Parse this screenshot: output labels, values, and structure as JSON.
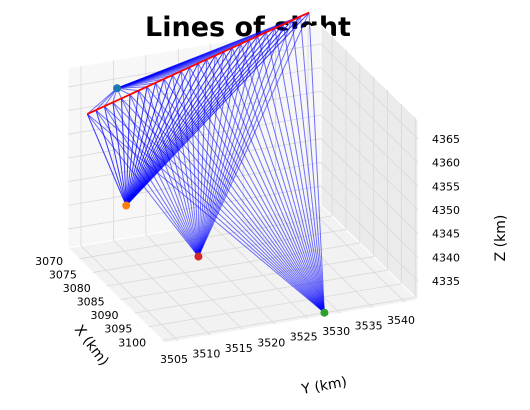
{
  "chart_data": {
    "type": "3d-line",
    "title": "Lines of sight",
    "xlabel": "X (km)",
    "ylabel": "Y (km)",
    "zlabel": "Z (km)",
    "x_ticks": [
      3070,
      3075,
      3080,
      3085,
      3090,
      3095,
      3100
    ],
    "y_ticks": [
      3505,
      3510,
      3515,
      3520,
      3525,
      3530,
      3535,
      3540
    ],
    "z_ticks": [
      4335,
      4340,
      4345,
      4350,
      4355,
      4360,
      4365
    ],
    "xlim": [
      3066,
      3101
    ],
    "ylim": [
      3503,
      3542
    ],
    "zlim": [
      4331,
      4369
    ],
    "grid": true,
    "colors": {
      "sight_line": "#0000ff",
      "highlight": "#ff0000"
    },
    "stations": [
      {
        "color": "#1f77b4",
        "x": 3072,
        "y": 3508,
        "z": 4367
      },
      {
        "color": "#ff7f0e",
        "x": 3087,
        "y": 3503,
        "z": 4352
      },
      {
        "color": "#2ca02c",
        "x": 3100,
        "y": 3528,
        "z": 4331
      },
      {
        "color": "#d62728",
        "x": 3092,
        "y": 3512,
        "z": 4342
      }
    ],
    "targets": [
      {
        "x": 3080,
        "y": 3500,
        "z": 4368
      },
      {
        "x": 3057,
        "y": 3544,
        "z": 4366
      }
    ],
    "highlight_line": {
      "from": 0,
      "to": 1
    }
  }
}
